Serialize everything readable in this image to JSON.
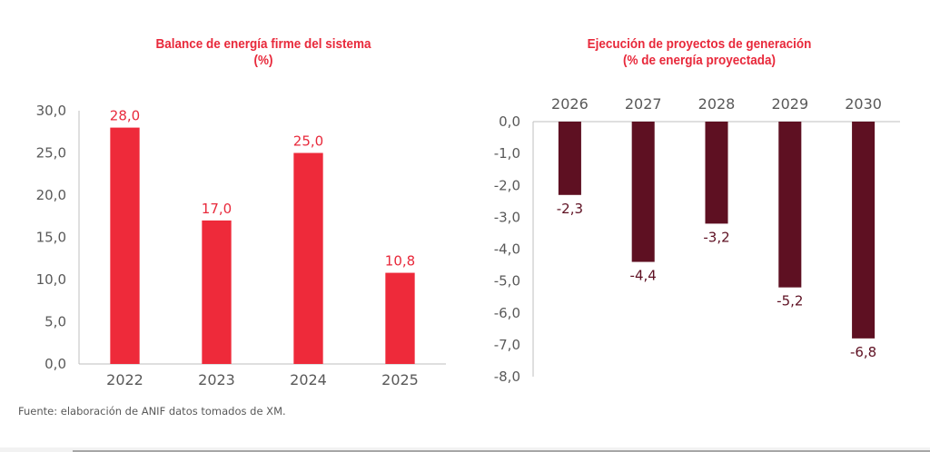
{
  "chart_data": [
    {
      "type": "bar",
      "title": "Balance de energía firme del sistema",
      "subtitle": "(%)",
      "categories": [
        "2022",
        "2023",
        "2024",
        "2025"
      ],
      "values": [
        28.0,
        17.0,
        25.0,
        10.8
      ],
      "data_labels": [
        "28,0",
        "17,0",
        "25,0",
        "10,8"
      ],
      "ylim": [
        0,
        30
      ],
      "yticks": [
        0,
        5,
        10,
        15,
        20,
        25,
        30
      ],
      "ytick_labels": [
        "0,0",
        "5,0",
        "10,0",
        "15,0",
        "20,0",
        "25,0",
        "30,0"
      ],
      "xlabel": "",
      "ylabel": "",
      "grid": false,
      "bar_color": "#ee2a3a",
      "label_color": "#e8293b"
    },
    {
      "type": "bar",
      "title": "Ejecución de proyectos de generación",
      "subtitle": "(% de energía proyectada)",
      "categories": [
        "2026",
        "2027",
        "2028",
        "2029",
        "2030"
      ],
      "values": [
        -2.3,
        -4.4,
        -3.2,
        -5.2,
        -6.8
      ],
      "data_labels": [
        "-2,3",
        "-4,4",
        "-3,2",
        "-5,2",
        "-6,8"
      ],
      "ylim": [
        -8,
        0
      ],
      "yticks": [
        0,
        -1,
        -2,
        -3,
        -4,
        -5,
        -6,
        -7,
        -8
      ],
      "ytick_labels": [
        "0,0",
        "-1,0",
        "-2,0",
        "-3,0",
        "-4,0",
        "-5,0",
        "-6,0",
        "-7,0",
        "-8,0"
      ],
      "xaxis_position": "top",
      "xlabel": "",
      "ylabel": "",
      "grid": false,
      "bar_color": "#5e1022",
      "label_color": "#5e1022"
    }
  ],
  "source": "Fuente: elaboración de ANIF datos tomados de XM."
}
